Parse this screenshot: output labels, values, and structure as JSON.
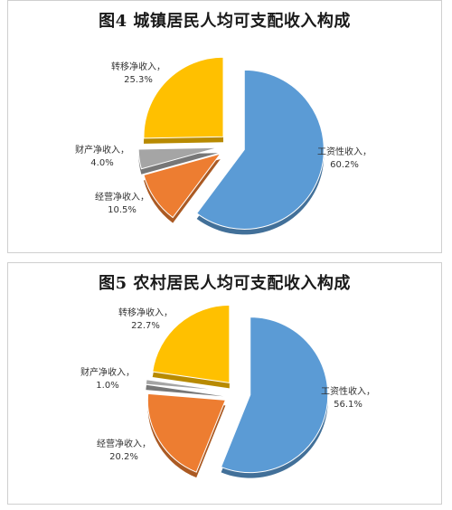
{
  "chart_data": [
    {
      "type": "pie",
      "title": "图4 城镇居民人均可支配收入构成",
      "series": [
        {
          "name": "工资性收入",
          "value": 60.2,
          "value_label": "60.2%",
          "color": "#5B9BD5"
        },
        {
          "name": "经营净收入",
          "value": 10.5,
          "value_label": "10.5%",
          "color": "#ED7D31"
        },
        {
          "name": "财产净收入",
          "value": 4.0,
          "value_label": "4.0%",
          "color": "#A5A5A5"
        },
        {
          "name": "转移净收入",
          "value": 25.3,
          "value_label": "25.3%",
          "color": "#FFC000"
        }
      ],
      "legend": "none",
      "label_suffix": "，"
    },
    {
      "type": "pie",
      "title": "图5 农村居民人均可支配收入构成",
      "series": [
        {
          "name": "工资性收入",
          "value": 56.1,
          "value_label": "56.1%",
          "color": "#5B9BD5"
        },
        {
          "name": "经营净收入",
          "value": 20.2,
          "value_label": "20.2%",
          "color": "#ED7D31"
        },
        {
          "name": "财产净收入",
          "value": 1.0,
          "value_label": "1.0%",
          "color": "#A5A5A5"
        },
        {
          "name": "转移净收入",
          "value": 22.7,
          "value_label": "22.7%",
          "color": "#FFC000"
        }
      ],
      "legend": "none",
      "label_suffix": "，"
    }
  ]
}
